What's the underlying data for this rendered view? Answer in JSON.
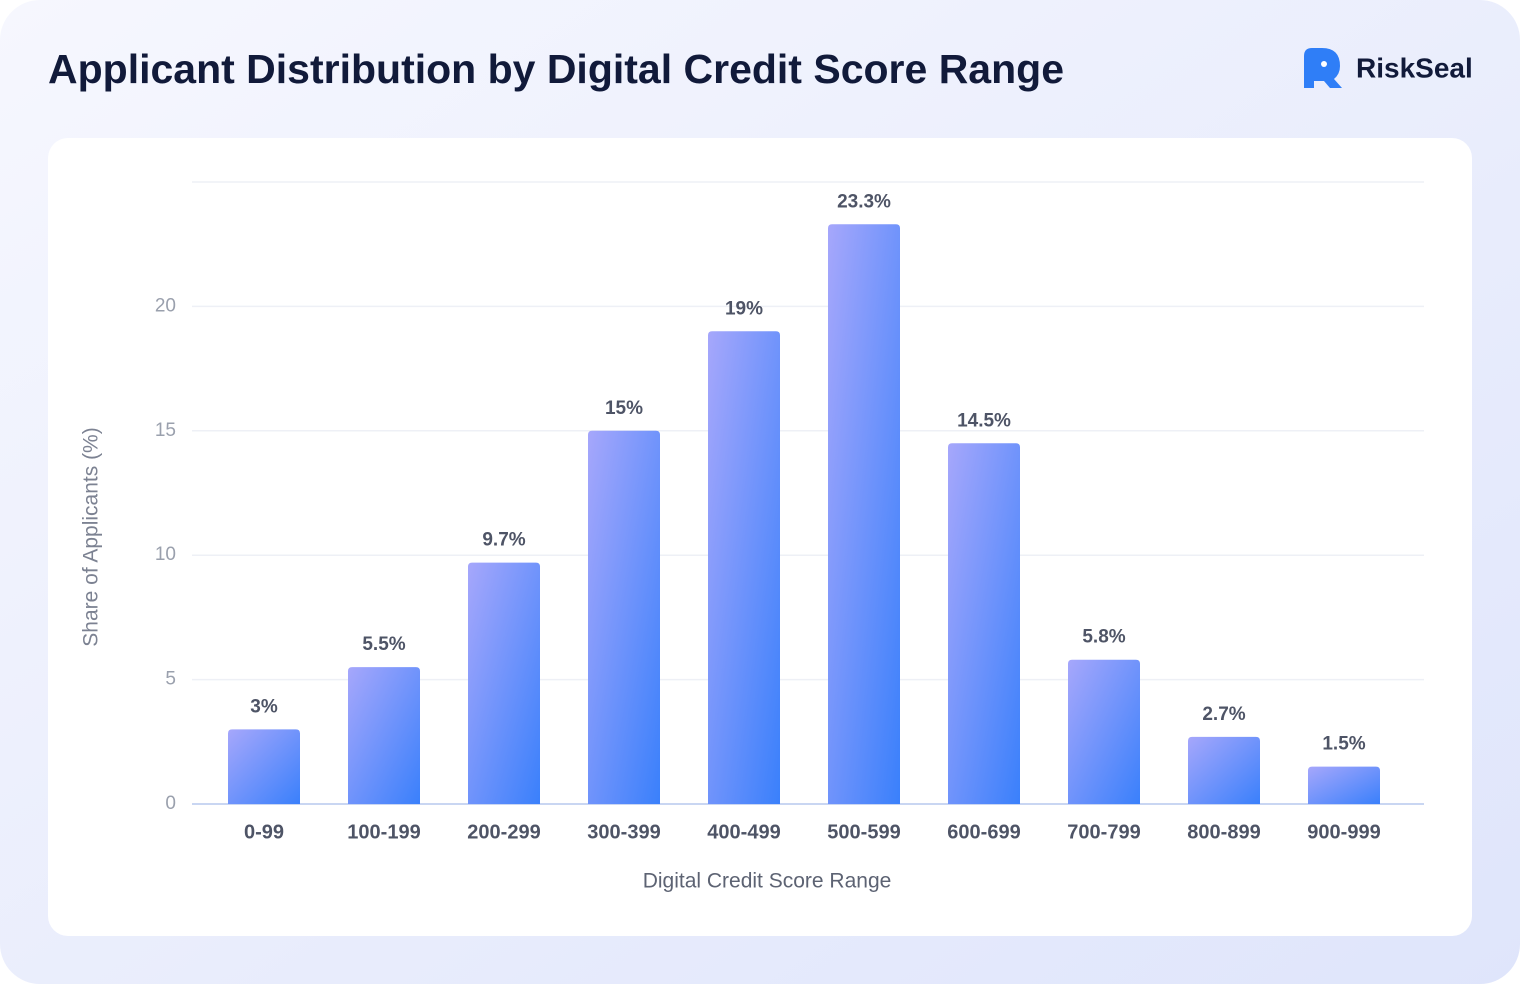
{
  "brand": "RiskSeal",
  "chart_data": {
    "type": "bar",
    "title": "Applicant Distribution by Digital Credit Score Range",
    "x_label": "Digital Credit Score Range",
    "y_label": "Share of Applicants (%)",
    "categories": [
      "0-99",
      "100-199",
      "200-299",
      "300-399",
      "400-499",
      "500-599",
      "600-699",
      "700-799",
      "800-899",
      "900-999"
    ],
    "values": [
      3,
      5.5,
      9.7,
      15,
      19,
      23.3,
      14.5,
      5.8,
      2.7,
      1.5
    ],
    "value_labels": [
      "3%",
      "5.5%",
      "9.7%",
      "15%",
      "19%",
      "23.3%",
      "14.5%",
      "5.8%",
      "2.7%",
      "1.5%"
    ],
    "gradient": [
      "#a6a7fb",
      "#3a80fb"
    ],
    "ylim": [
      0,
      25
    ],
    "yticks": [
      0,
      5,
      10,
      15,
      20
    ],
    "grid": true
  }
}
